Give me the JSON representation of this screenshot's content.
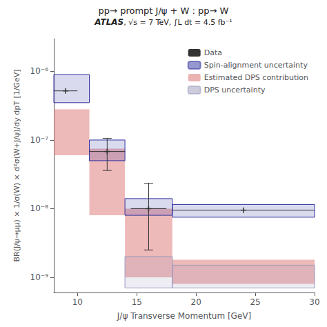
{
  "chart_data": {
    "type": "step_bands",
    "title": "pp→ prompt J/ψ + W : pp→ W",
    "annotations": [
      "ATLAS",
      ", √s = 7 TeV, ∫L dt = 4.5 fb⁻¹"
    ],
    "xlabel": "J/ψ Transverse Momentum [GeV]",
    "ylabel": "BR(J/ψ→μμ) × 1/σ(W) × d²σ(W+J/ψ)/dy dpT [1/GeV]",
    "xlim": [
      8,
      30
    ],
    "ylim": [
      6e-10,
      3e-06
    ],
    "xticks": [
      10,
      15,
      20,
      25,
      30
    ],
    "yticks": [
      {
        "value": 1e-09,
        "label": "10⁻⁹"
      },
      {
        "value": 1e-08,
        "label": "10⁻⁸"
      },
      {
        "value": 1e-07,
        "label": "10⁻⁷"
      },
      {
        "value": 1e-06,
        "label": "10⁻⁶"
      }
    ],
    "log": "y",
    "grid": false,
    "legend": "upper right",
    "series": [
      {
        "name": "Data",
        "type": "errorbar",
        "color": "#333333",
        "marker": "plus",
        "x": [
          9.0,
          12.5,
          16.0,
          24.0
        ],
        "values": [
          5.2e-07,
          6.8e-08,
          1e-08,
          9.5e-09
        ],
        "xerr": [
          1.0,
          1.5,
          1.5,
          6.0
        ],
        "yerr_lo": [
          0.0,
          3.2e-08,
          7.5e-09,
          0.0
        ],
        "yerr_hi": [
          0.0,
          3.8e-08,
          1.35e-08,
          0.0
        ]
      },
      {
        "name": "Spin-alignment uncertainty",
        "type": "band_hatched",
        "color": "#3030a0",
        "bins": [
          {
            "x0": 8,
            "x1": 11,
            "lo": 3.5e-07,
            "hi": 9e-07
          },
          {
            "x0": 11,
            "x1": 14,
            "lo": 5e-08,
            "hi": 1e-07
          },
          {
            "x0": 14,
            "x1": 18,
            "lo": 8e-09,
            "hi": 1.4e-08
          },
          {
            "x0": 18,
            "x1": 30,
            "lo": 7.5e-09,
            "hi": 1.15e-08
          }
        ]
      },
      {
        "name": "Estimated DPS contribution",
        "type": "band_filled",
        "color": "#e08080",
        "bins": [
          {
            "x0": 8,
            "x1": 11,
            "lo": 6e-08,
            "hi": 2.8e-07
          },
          {
            "x0": 11,
            "x1": 14,
            "lo": 8e-09,
            "hi": 7.5e-08
          },
          {
            "x0": 14,
            "x1": 18,
            "lo": 1e-09,
            "hi": 1e-08
          },
          {
            "x0": 18,
            "x1": 30,
            "lo": 8e-10,
            "hi": 1.8e-09
          }
        ]
      },
      {
        "name": "DPS uncertainty",
        "type": "band_hatched",
        "color": "#9999bb",
        "bins": [
          {
            "x0": 14,
            "x1": 18,
            "lo": 7e-10,
            "hi": 2e-09
          },
          {
            "x0": 18,
            "x1": 30,
            "lo": 7e-10,
            "hi": 1.5e-09
          }
        ]
      }
    ]
  }
}
